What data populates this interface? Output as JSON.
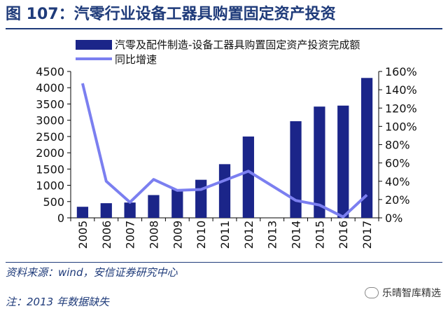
{
  "page": {
    "title": "图 107：汽零行业设备工器具购置固定资产投资",
    "source": "资料来源：wind，安信证券研究中心",
    "note": "注：2013 年数据缺失",
    "watermark": "乐晴智库精选"
  },
  "colors": {
    "bar": "#1b2589",
    "line": "#7b7ff0",
    "title": "#1f3b7a"
  },
  "chart_data": {
    "type": "bar",
    "categories": [
      "2005",
      "2006",
      "2007",
      "2008",
      "2009",
      "2010",
      "2011",
      "2012",
      "2013",
      "2014",
      "2015",
      "2016",
      "2017"
    ],
    "series": [
      {
        "name": "汽零及配件制造-设备工器具购置固定资产投资完成额",
        "type": "bar",
        "axis": "left",
        "values": [
          340,
          450,
          470,
          700,
          880,
          1170,
          1650,
          2500,
          null,
          2970,
          3420,
          3450,
          4300
        ]
      },
      {
        "name": "同比增速",
        "type": "line",
        "axis": "right",
        "values": [
          147,
          40,
          17,
          42,
          30,
          31,
          41,
          51,
          null,
          19,
          14,
          1,
          25
        ]
      }
    ],
    "ylim_left": [
      0,
      4500
    ],
    "left_ticks": [
      "0",
      "500",
      "1000",
      "1500",
      "2000",
      "2500",
      "3000",
      "3500",
      "4000",
      "4500"
    ],
    "ylim_right": [
      0,
      160
    ],
    "right_ticks": [
      "0%",
      "20%",
      "40%",
      "60%",
      "80%",
      "100%",
      "120%",
      "140%",
      "160%"
    ],
    "legend_position": "top-left"
  }
}
